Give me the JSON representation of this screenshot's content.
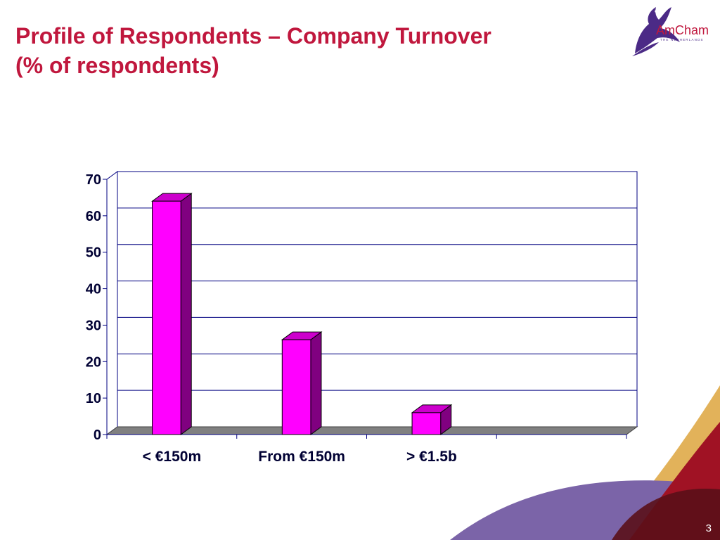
{
  "slide": {
    "title_line1": "Profile of Respondents – Company Turnover",
    "title_line2": "(% of respondents)",
    "page_number": "3"
  },
  "logo": {
    "name": "AmCham",
    "subtitle": "THE NETHERLANDS",
    "icon": "eagle-icon"
  },
  "colors": {
    "title": "#c0173d",
    "bar_front": "#ff00ff",
    "bar_side": "#800080",
    "bar_top": "#cc00cc",
    "floor": "#808080",
    "axis": "#000080"
  },
  "chart_data": {
    "type": "bar",
    "categories": [
      "< €150m",
      "From €150m",
      "> €1.5b"
    ],
    "values": [
      64,
      26,
      6
    ],
    "title": "",
    "xlabel": "",
    "ylabel": "",
    "ylim": [
      0,
      70
    ],
    "yticks": [
      "0",
      "10",
      "20",
      "30",
      "40",
      "50",
      "60",
      "70"
    ],
    "grid": true,
    "style": "3d-column"
  }
}
